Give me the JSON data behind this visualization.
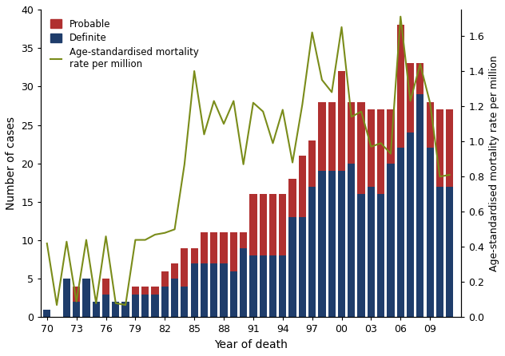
{
  "years": [
    1970,
    1971,
    1972,
    1973,
    1974,
    1975,
    1976,
    1977,
    1978,
    1979,
    1980,
    1981,
    1982,
    1983,
    1984,
    1985,
    1986,
    1987,
    1988,
    1989,
    1990,
    1991,
    1992,
    1993,
    1994,
    1995,
    1996,
    1997,
    1998,
    1999,
    2000,
    2001,
    2002,
    2003,
    2004,
    2005,
    2006,
    2007,
    2008,
    2009,
    2010,
    2011
  ],
  "definite": [
    1,
    0,
    5,
    2,
    5,
    2,
    3,
    2,
    2,
    3,
    3,
    3,
    4,
    5,
    4,
    7,
    7,
    7,
    7,
    6,
    9,
    8,
    8,
    8,
    8,
    13,
    13,
    17,
    19,
    19,
    19,
    20,
    16,
    17,
    16,
    20,
    22,
    24,
    29,
    22,
    17,
    17
  ],
  "probable": [
    0,
    0,
    0,
    2,
    0,
    0,
    2,
    0,
    0,
    1,
    1,
    1,
    2,
    2,
    5,
    2,
    4,
    4,
    4,
    5,
    2,
    8,
    8,
    8,
    8,
    5,
    8,
    6,
    9,
    9,
    13,
    8,
    12,
    10,
    11,
    7,
    16,
    9,
    4,
    6,
    10,
    10
  ],
  "mortality_rate": [
    0.42,
    0.07,
    0.43,
    0.09,
    0.44,
    0.08,
    0.46,
    0.08,
    0.07,
    0.44,
    0.44,
    0.47,
    0.48,
    0.5,
    0.87,
    1.4,
    1.04,
    1.23,
    1.1,
    1.23,
    0.87,
    1.22,
    1.17,
    0.99,
    1.18,
    0.88,
    1.21,
    1.62,
    1.35,
    1.28,
    1.65,
    1.14,
    1.17,
    0.97,
    0.99,
    0.93,
    1.71,
    1.23,
    1.44,
    1.22,
    0.8,
    0.81
  ],
  "bar_definite_color": "#1f3d6b",
  "bar_probable_color": "#b03030",
  "line_color": "#7a8c1a",
  "xlabel": "Year of death",
  "ylabel_left": "Number of cases",
  "ylabel_right": "Age-standardised mortality rate per million",
  "ylim_left": [
    0,
    40
  ],
  "ylim_right": [
    0.0,
    1.75
  ],
  "xtick_labels": [
    "70",
    "73",
    "76",
    "79",
    "82",
    "85",
    "88",
    "91",
    "94",
    "97",
    "00",
    "03",
    "06",
    "09"
  ],
  "xtick_positions": [
    1970,
    1973,
    1976,
    1979,
    1982,
    1985,
    1988,
    1991,
    1994,
    1997,
    2000,
    2003,
    2006,
    2009
  ],
  "legend_probable": "Probable",
  "legend_definite": "Definite",
  "legend_line": "Age-standardised mortality\nrate per million",
  "figsize": [
    6.32,
    4.46
  ],
  "dpi": 100
}
